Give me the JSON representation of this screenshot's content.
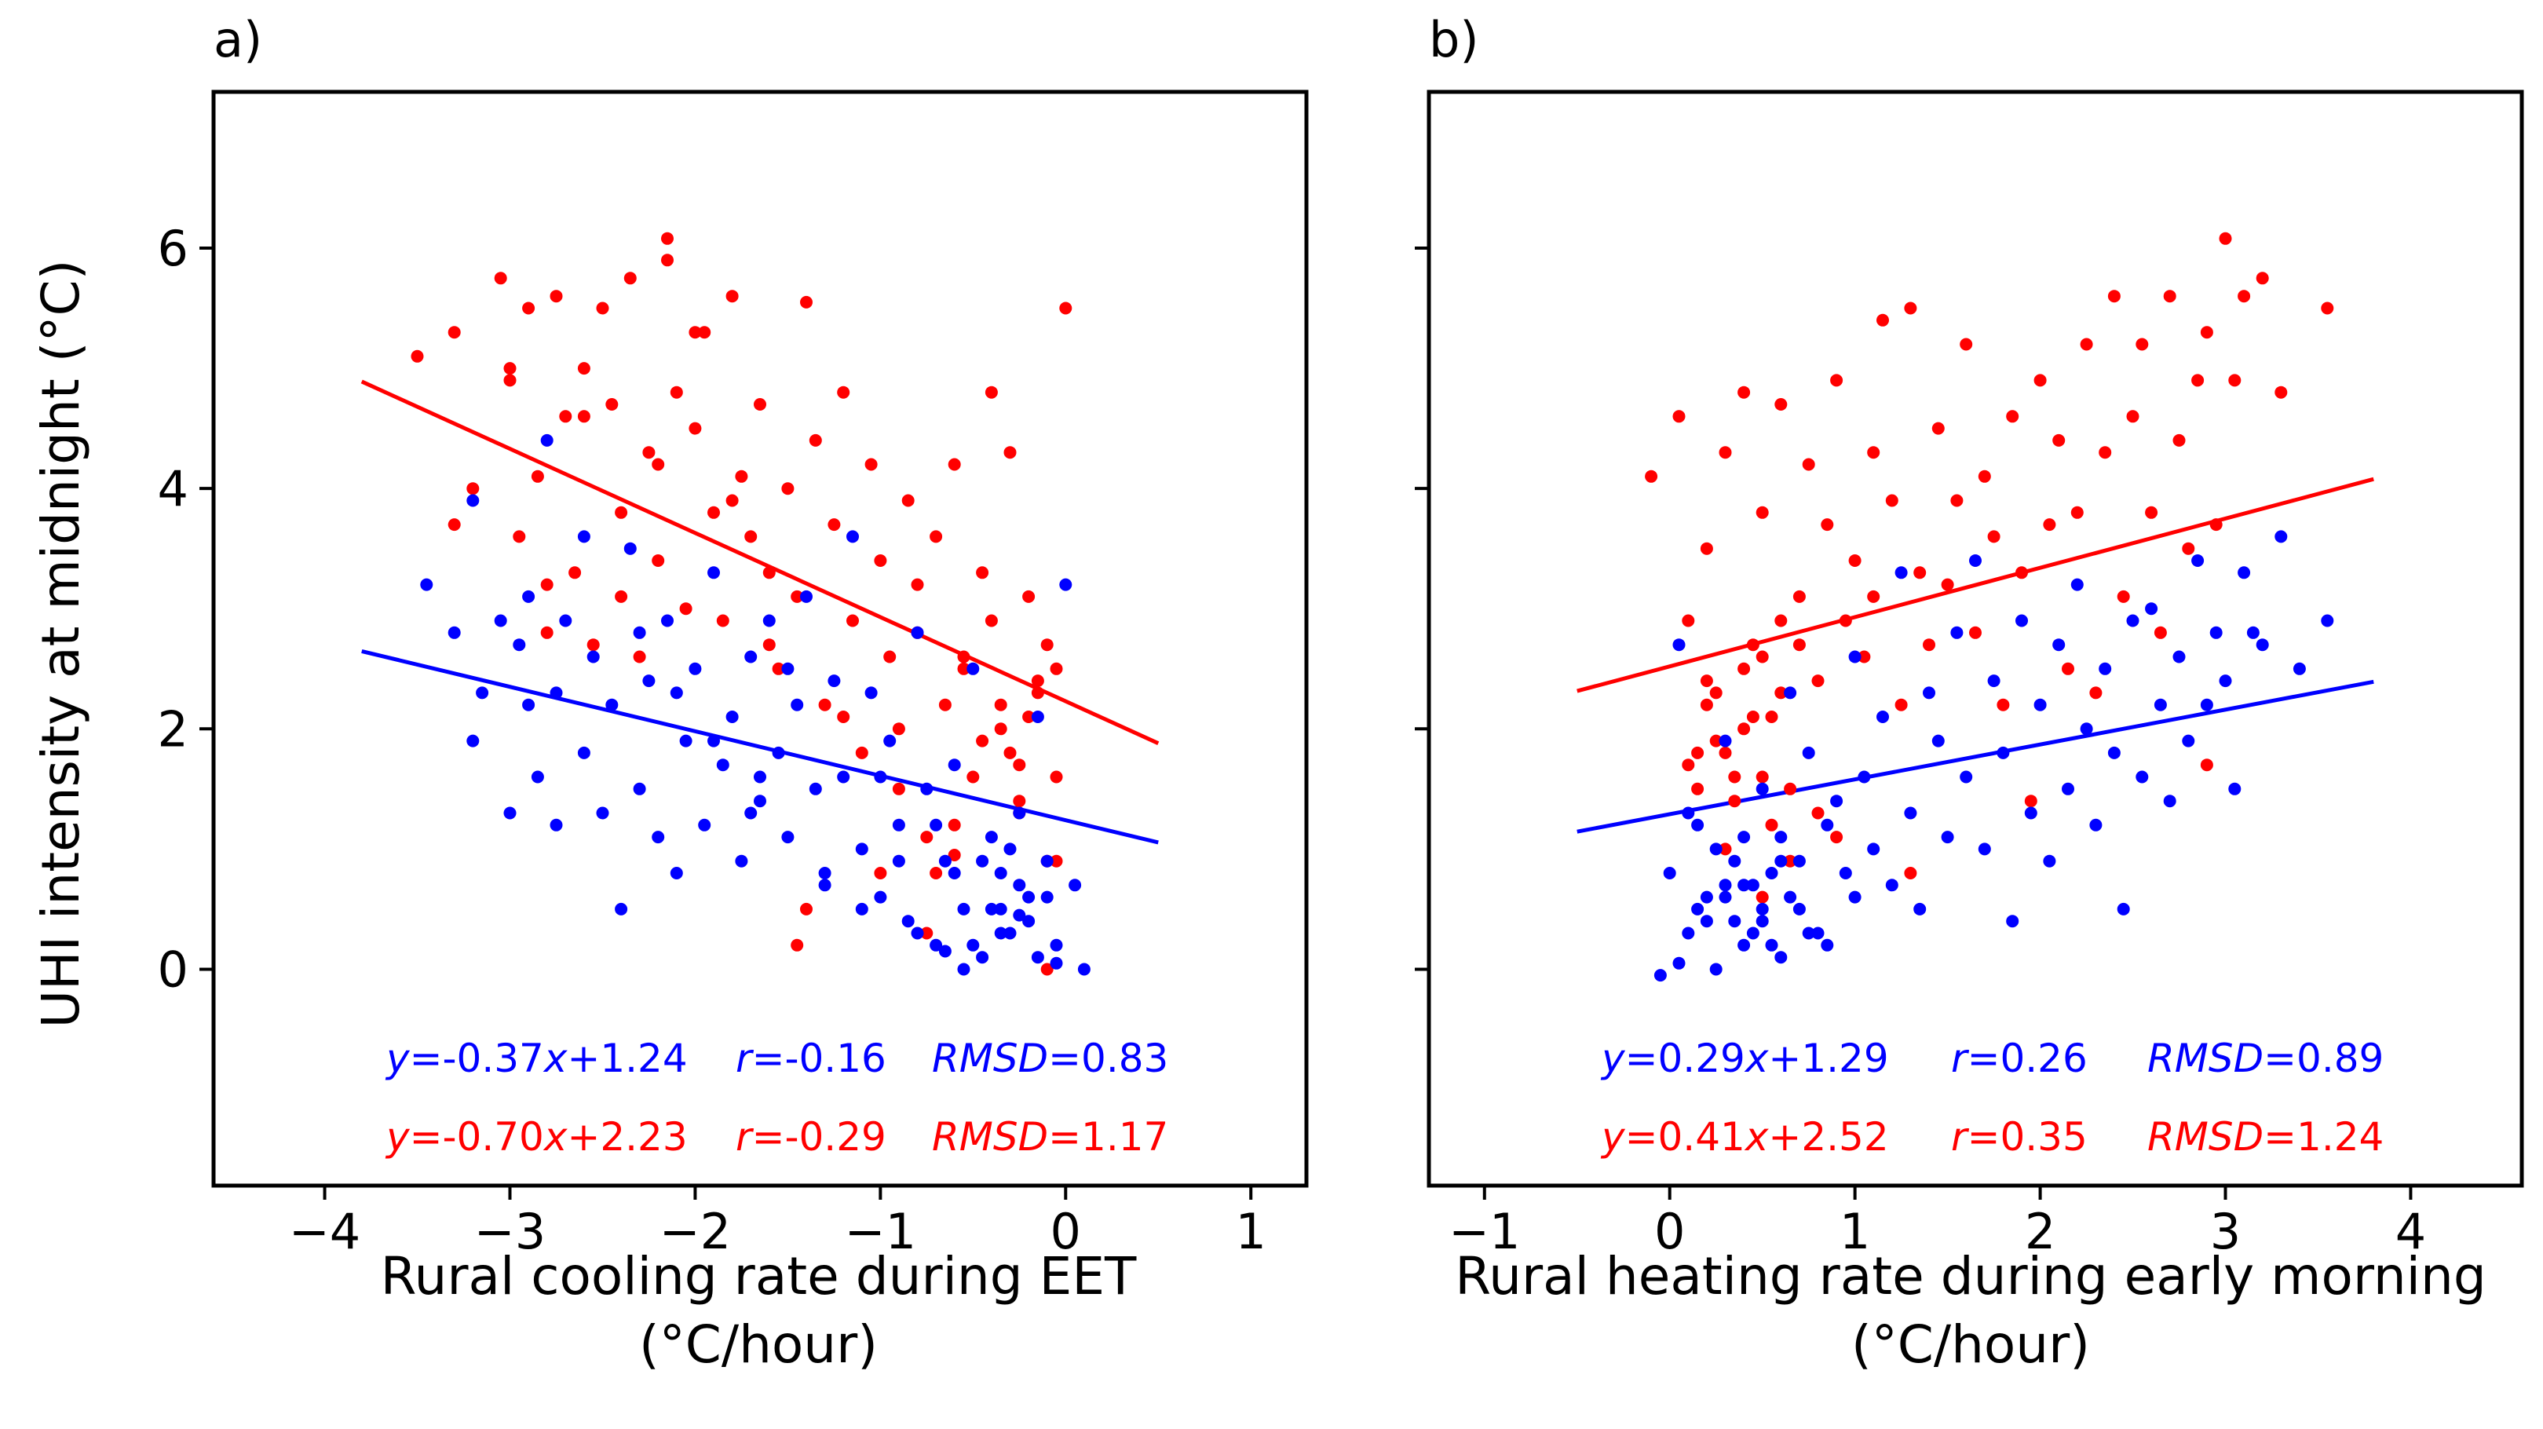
{
  "colors": {
    "blue": "#0000ff",
    "red": "#ff0000"
  },
  "figure": {
    "ylabel": "UHI intensity at midnight (°C)",
    "yticks": [
      "0",
      "2",
      "4",
      "6"
    ],
    "ylim": [
      -1.8,
      7.3
    ]
  },
  "chart_data": [
    {
      "type": "scatter",
      "panel": "a)",
      "xlabel": [
        "Rural cooling rate during EET",
        "(°C/hour)"
      ],
      "ylabel": "UHI intensity at midnight (°C)",
      "xlim": [
        -4.6,
        1.3
      ],
      "ylim": [
        -1.8,
        7.3
      ],
      "xticks": [
        "−4",
        "−3",
        "−2",
        "−1",
        "0",
        "1"
      ],
      "series": [
        {
          "name": "blue",
          "color": "#0000ff",
          "fit": {
            "slope": -0.37,
            "intercept": 1.24,
            "x_range": [
              -3.8,
              0.5
            ]
          },
          "stats": {
            "eq": [
              "y",
              "=-0.37",
              "x",
              "+1.24"
            ],
            "r": [
              "r",
              "=-0.16"
            ],
            "rmsd": [
              "RMSD",
              "=0.83"
            ]
          },
          "points": {
            "x": [
              -3.45,
              -3.3,
              -3.2,
              -3.15,
              -3.05,
              -3,
              -2.95,
              -2.9,
              -2.85,
              -2.8,
              -2.75,
              -2.7,
              -2.6,
              -2.55,
              -2.5,
              -2.45,
              -2.4,
              -2.35,
              -2.3,
              -2.25,
              -2.2,
              -2.15,
              -2.1,
              -2.05,
              -2,
              -1.95,
              -1.9,
              -1.85,
              -1.8,
              -1.75,
              -1.7,
              -1.65,
              -1.6,
              -1.55,
              -1.5,
              -1.45,
              -1.4,
              -1.35,
              -1.3,
              -1.25,
              -1.2,
              -1.15,
              -1.1,
              -1.05,
              -1,
              -0.95,
              -0.9,
              -0.85,
              -0.8,
              -0.75,
              -0.7,
              -0.65,
              -0.6,
              -0.55,
              -0.5,
              -0.45,
              -0.4,
              -0.35,
              -0.3,
              -0.25,
              -0.2,
              -0.15,
              -0.1,
              -0.05,
              0,
              0.05,
              0.1,
              -0.6,
              -0.5,
              -0.4,
              -0.3,
              -0.2,
              -0.1,
              -0.45,
              -0.35,
              -0.25,
              -0.15,
              -0.7,
              -0.8,
              -0.9,
              -1,
              -1.1,
              -1.3,
              -1.5,
              -1.7,
              -1.9,
              -2.1,
              -2.3,
              -2.6,
              -2.9,
              -3.2,
              -2.75,
              -1.65,
              -0.05,
              -0.55,
              -0.65,
              -0.35,
              -0.25
            ],
            "y": [
              3.2,
              2.8,
              3.9,
              2.3,
              2.9,
              1.3,
              2.7,
              2.2,
              1.6,
              4.4,
              1.2,
              2.9,
              1.8,
              2.6,
              1.3,
              2.2,
              0.5,
              3.5,
              1.5,
              2.4,
              1.1,
              2.9,
              0.8,
              1.9,
              2.5,
              1.2,
              3.3,
              1.7,
              2.1,
              0.9,
              2.6,
              1.4,
              2.9,
              1.8,
              1.1,
              2.2,
              3.1,
              1.5,
              0.7,
              2.4,
              1.6,
              3.6,
              1,
              2.3,
              0.6,
              1.9,
              1.2,
              0.4,
              2.8,
              1.5,
              0.2,
              0.9,
              1.7,
              0.5,
              2.5,
              0.1,
              1.1,
              0.8,
              0.3,
              1.3,
              0.6,
              2.1,
              0.9,
              0.2,
              3.2,
              0.7,
              0,
              0.8,
              0.2,
              0.5,
              1,
              0.4,
              0.6,
              0.9,
              0.3,
              0.7,
              0.1,
              1.2,
              0.3,
              0.9,
              1.6,
              0.5,
              0.8,
              2.5,
              1.3,
              1.9,
              2.3,
              2.8,
              3.6,
              3.1,
              1.9,
              2.3,
              1.6,
              0.05,
              0,
              0.15,
              0.5,
              0.45
            ]
          }
        },
        {
          "name": "red",
          "color": "#ff0000",
          "fit": {
            "slope": -0.7,
            "intercept": 2.23,
            "x_range": [
              -3.8,
              0.5
            ]
          },
          "stats": {
            "eq": [
              "y",
              "=-0.70",
              "x",
              "+2.23"
            ],
            "r": [
              "r",
              "=-0.29"
            ],
            "rmsd": [
              "RMSD",
              "=1.17"
            ]
          },
          "points": {
            "x": [
              -3.5,
              -3.3,
              -3.2,
              -3.3,
              -3.05,
              -3,
              -2.95,
              -2.9,
              -2.85,
              -2.8,
              -2.75,
              -2.7,
              -2.65,
              -2.6,
              -2.55,
              -2.5,
              -2.45,
              -2.4,
              -2.35,
              -2.3,
              -2.25,
              -2.2,
              -2.15,
              -2.1,
              -2.05,
              -2,
              -1.95,
              -1.9,
              -1.85,
              -1.8,
              -1.75,
              -1.7,
              -1.65,
              -1.6,
              -1.55,
              -1.5,
              -1.45,
              -1.4,
              -1.35,
              -1.3,
              -1.25,
              -1.2,
              -1.15,
              -1.1,
              -1.05,
              -1,
              -0.95,
              -0.9,
              -0.85,
              -0.8,
              -0.75,
              -0.7,
              -0.65,
              -0.6,
              -0.55,
              -0.5,
              -0.45,
              -0.4,
              -0.35,
              -0.3,
              -0.25,
              -0.2,
              -0.15,
              -0.1,
              -0.05,
              0,
              -0.3,
              -0.2,
              -0.1,
              -0.25,
              -0.35,
              -0.45,
              -0.15,
              -0.05,
              -0.55,
              -0.6,
              -0.7,
              -0.8,
              -0.9,
              -1.2,
              -1.4,
              -1.6,
              -1.8,
              -2.0,
              -2.2,
              -2.4,
              -2.6,
              -2.8,
              -3.0,
              -1.0,
              -0.4,
              -0.1,
              -0.05,
              -2.15,
              -0.75,
              -0.25,
              -1.45,
              -0.6
            ],
            "y": [
              5.1,
              5.3,
              4,
              3.7,
              5.75,
              4.9,
              3.6,
              5.5,
              4.1,
              3.2,
              5.6,
              4.6,
              3.3,
              5,
              2.7,
              5.5,
              4.7,
              3.8,
              5.75,
              2.6,
              4.3,
              3.4,
              5.9,
              4.8,
              3,
              4.5,
              5.3,
              3.8,
              2.9,
              5.6,
              4.1,
              3.6,
              4.7,
              3.3,
              2.5,
              4,
              3.1,
              5.55,
              4.4,
              2.2,
              3.7,
              4.8,
              2.9,
              1.8,
              4.2,
              3.4,
              2.6,
              1.5,
              3.9,
              2.8,
              1.1,
              3.6,
              2.2,
              4.2,
              2.5,
              1.6,
              3.3,
              2.9,
              2,
              4.3,
              1.4,
              3.1,
              2.3,
              0.9,
              2.5,
              5.5,
              1.8,
              2.1,
              2.7,
              1.3,
              2.2,
              1.9,
              2.4,
              1.6,
              2.6,
              1.2,
              0.8,
              3.2,
              2,
              2.1,
              0.5,
              2.7,
              3.9,
              5.3,
              4.2,
              3.1,
              4.6,
              2.8,
              5,
              0.8,
              4.8,
              0,
              0.9,
              6.08,
              0.3,
              1.7,
              0.2,
              0.95
            ]
          }
        }
      ]
    },
    {
      "type": "scatter",
      "panel": "b)",
      "xlabel": [
        "Rural heating rate during early morning",
        "(°C/hour)"
      ],
      "ylabel": "UHI intensity at midnight (°C)",
      "xlim": [
        -1.3,
        4.6
      ],
      "ylim": [
        -1.8,
        7.3
      ],
      "xticks": [
        "−1",
        "0",
        "1",
        "2",
        "3",
        "4"
      ],
      "series": [
        {
          "name": "blue",
          "color": "#0000ff",
          "fit": {
            "slope": 0.29,
            "intercept": 1.29,
            "x_range": [
              -0.5,
              3.8
            ]
          },
          "stats": {
            "eq": [
              "y",
              "=0.29",
              "x",
              "+1.29"
            ],
            "r": [
              "r",
              "=0.26"
            ],
            "rmsd": [
              "RMSD",
              "=0.89"
            ]
          },
          "points": {
            "x": [
              -0.05,
              0,
              0.05,
              0.1,
              0.15,
              0.2,
              0.25,
              0.3,
              0.35,
              0.4,
              0.45,
              0.5,
              0.55,
              0.6,
              0.65,
              0.7,
              0.75,
              0.8,
              0.85,
              0.9,
              0.95,
              1,
              1.05,
              1.1,
              1.15,
              1.2,
              1.25,
              1.3,
              1.35,
              1.4,
              1.45,
              1.5,
              1.55,
              1.6,
              1.65,
              1.7,
              1.75,
              1.8,
              1.85,
              1.9,
              1.95,
              2,
              2.05,
              2.1,
              2.15,
              2.2,
              2.25,
              2.3,
              2.35,
              2.4,
              2.45,
              2.5,
              2.55,
              2.6,
              2.65,
              2.7,
              2.75,
              2.8,
              2.85,
              2.9,
              2.95,
              3,
              3.05,
              3.1,
              3.15,
              3.2,
              3.3,
              3.4,
              3.55,
              0.2,
              0.3,
              0.4,
              0.5,
              0.6,
              0.35,
              0.45,
              0.55,
              0.65,
              0.25,
              0.15,
              0.75,
              0.05,
              0.5,
              0.4,
              0.3,
              0.6,
              0.7,
              0.1,
              0.85,
              1.0
            ],
            "y": [
              -0.05,
              0.8,
              2.7,
              0.3,
              1.2,
              0.6,
              0,
              1.9,
              0.4,
              1.1,
              0.7,
              1.5,
              0.2,
              0.9,
              2.3,
              0.5,
              1.8,
              0.3,
              1.2,
              1.4,
              0.8,
              2.6,
              1.6,
              1,
              2.1,
              0.7,
              3.3,
              1.3,
              0.5,
              2.3,
              1.9,
              1.1,
              2.8,
              1.6,
              3.4,
              1,
              2.4,
              1.8,
              0.4,
              2.9,
              1.3,
              2.2,
              0.9,
              2.7,
              1.5,
              3.2,
              2,
              1.2,
              2.5,
              1.8,
              0.5,
              2.9,
              1.6,
              3,
              2.2,
              1.4,
              2.6,
              1.9,
              3.4,
              2.2,
              2.8,
              2.4,
              1.5,
              3.3,
              2.8,
              2.7,
              3.6,
              2.5,
              2.9,
              0.4,
              0.7,
              0.2,
              0.5,
              0.1,
              0.9,
              0.3,
              0.8,
              0.6,
              1.0,
              0.5,
              0.3,
              0.05,
              0.4,
              0.7,
              0.6,
              1.1,
              0.9,
              1.3,
              0.2,
              0.6
            ]
          }
        },
        {
          "name": "red",
          "color": "#ff0000",
          "fit": {
            "slope": 0.41,
            "intercept": 2.52,
            "x_range": [
              -0.5,
              3.8
            ]
          },
          "stats": {
            "eq": [
              "y",
              "=0.41",
              "x",
              "+2.52"
            ],
            "r": [
              "r",
              "=0.35"
            ],
            "rmsd": [
              "RMSD",
              "=1.24"
            ]
          },
          "points": {
            "x": [
              -0.1,
              0.05,
              0.1,
              0.15,
              0.2,
              0.25,
              0.3,
              0.35,
              0.4,
              0.45,
              0.5,
              0.55,
              0.6,
              0.65,
              0.7,
              0.75,
              0.8,
              0.85,
              0.9,
              0.95,
              1,
              1.05,
              1.1,
              1.15,
              1.2,
              1.25,
              1.3,
              1.35,
              1.4,
              1.45,
              1.5,
              1.55,
              1.6,
              1.65,
              1.7,
              1.75,
              1.8,
              1.85,
              1.9,
              1.95,
              2,
              2.05,
              2.1,
              2.15,
              2.2,
              2.25,
              2.3,
              2.35,
              2.4,
              2.45,
              2.5,
              2.55,
              2.6,
              2.65,
              2.7,
              2.75,
              2.8,
              2.85,
              2.9,
              2.95,
              3,
              3.05,
              3.1,
              3.2,
              3.3,
              3.55,
              0.2,
              0.3,
              0.4,
              0.5,
              0.6,
              0.35,
              0.45,
              0.55,
              0.25,
              0.15,
              0.65,
              0.7,
              0.8,
              0.3,
              0.4,
              0.5,
              0.2,
              0.1,
              0.6,
              0.9,
              1.1,
              1.3,
              2.9,
              0.5
            ],
            "y": [
              4.1,
              4.6,
              2.9,
              1.8,
              3.5,
              2.3,
              4.3,
              1.6,
              4.8,
              2.7,
              3.8,
              2.1,
              4.7,
              1.5,
              3.1,
              4.2,
              2.4,
              3.7,
              4.9,
              2.9,
              3.4,
              2.6,
              4.3,
              5.4,
              3.9,
              2.2,
              5.5,
              3.3,
              2.7,
              4.5,
              3.2,
              3.9,
              5.2,
              2.8,
              4.1,
              3.6,
              2.2,
              4.6,
              3.3,
              1.4,
              4.9,
              3.7,
              4.4,
              2.5,
              3.8,
              5.2,
              2.3,
              4.3,
              5.6,
              3.1,
              4.6,
              5.2,
              3.8,
              2.8,
              5.6,
              4.4,
              3.5,
              4.9,
              5.3,
              3.7,
              6.08,
              4.9,
              5.6,
              5.75,
              4.8,
              5.5,
              2.2,
              1.8,
              2.5,
              1.6,
              2.3,
              1.4,
              2.1,
              1.2,
              1.9,
              1.5,
              0.9,
              2.7,
              1.3,
              1.0,
              2.0,
              0.6,
              2.4,
              1.7,
              2.9,
              1.1,
              3.1,
              0.8,
              1.7,
              2.6
            ]
          }
        }
      ]
    }
  ]
}
